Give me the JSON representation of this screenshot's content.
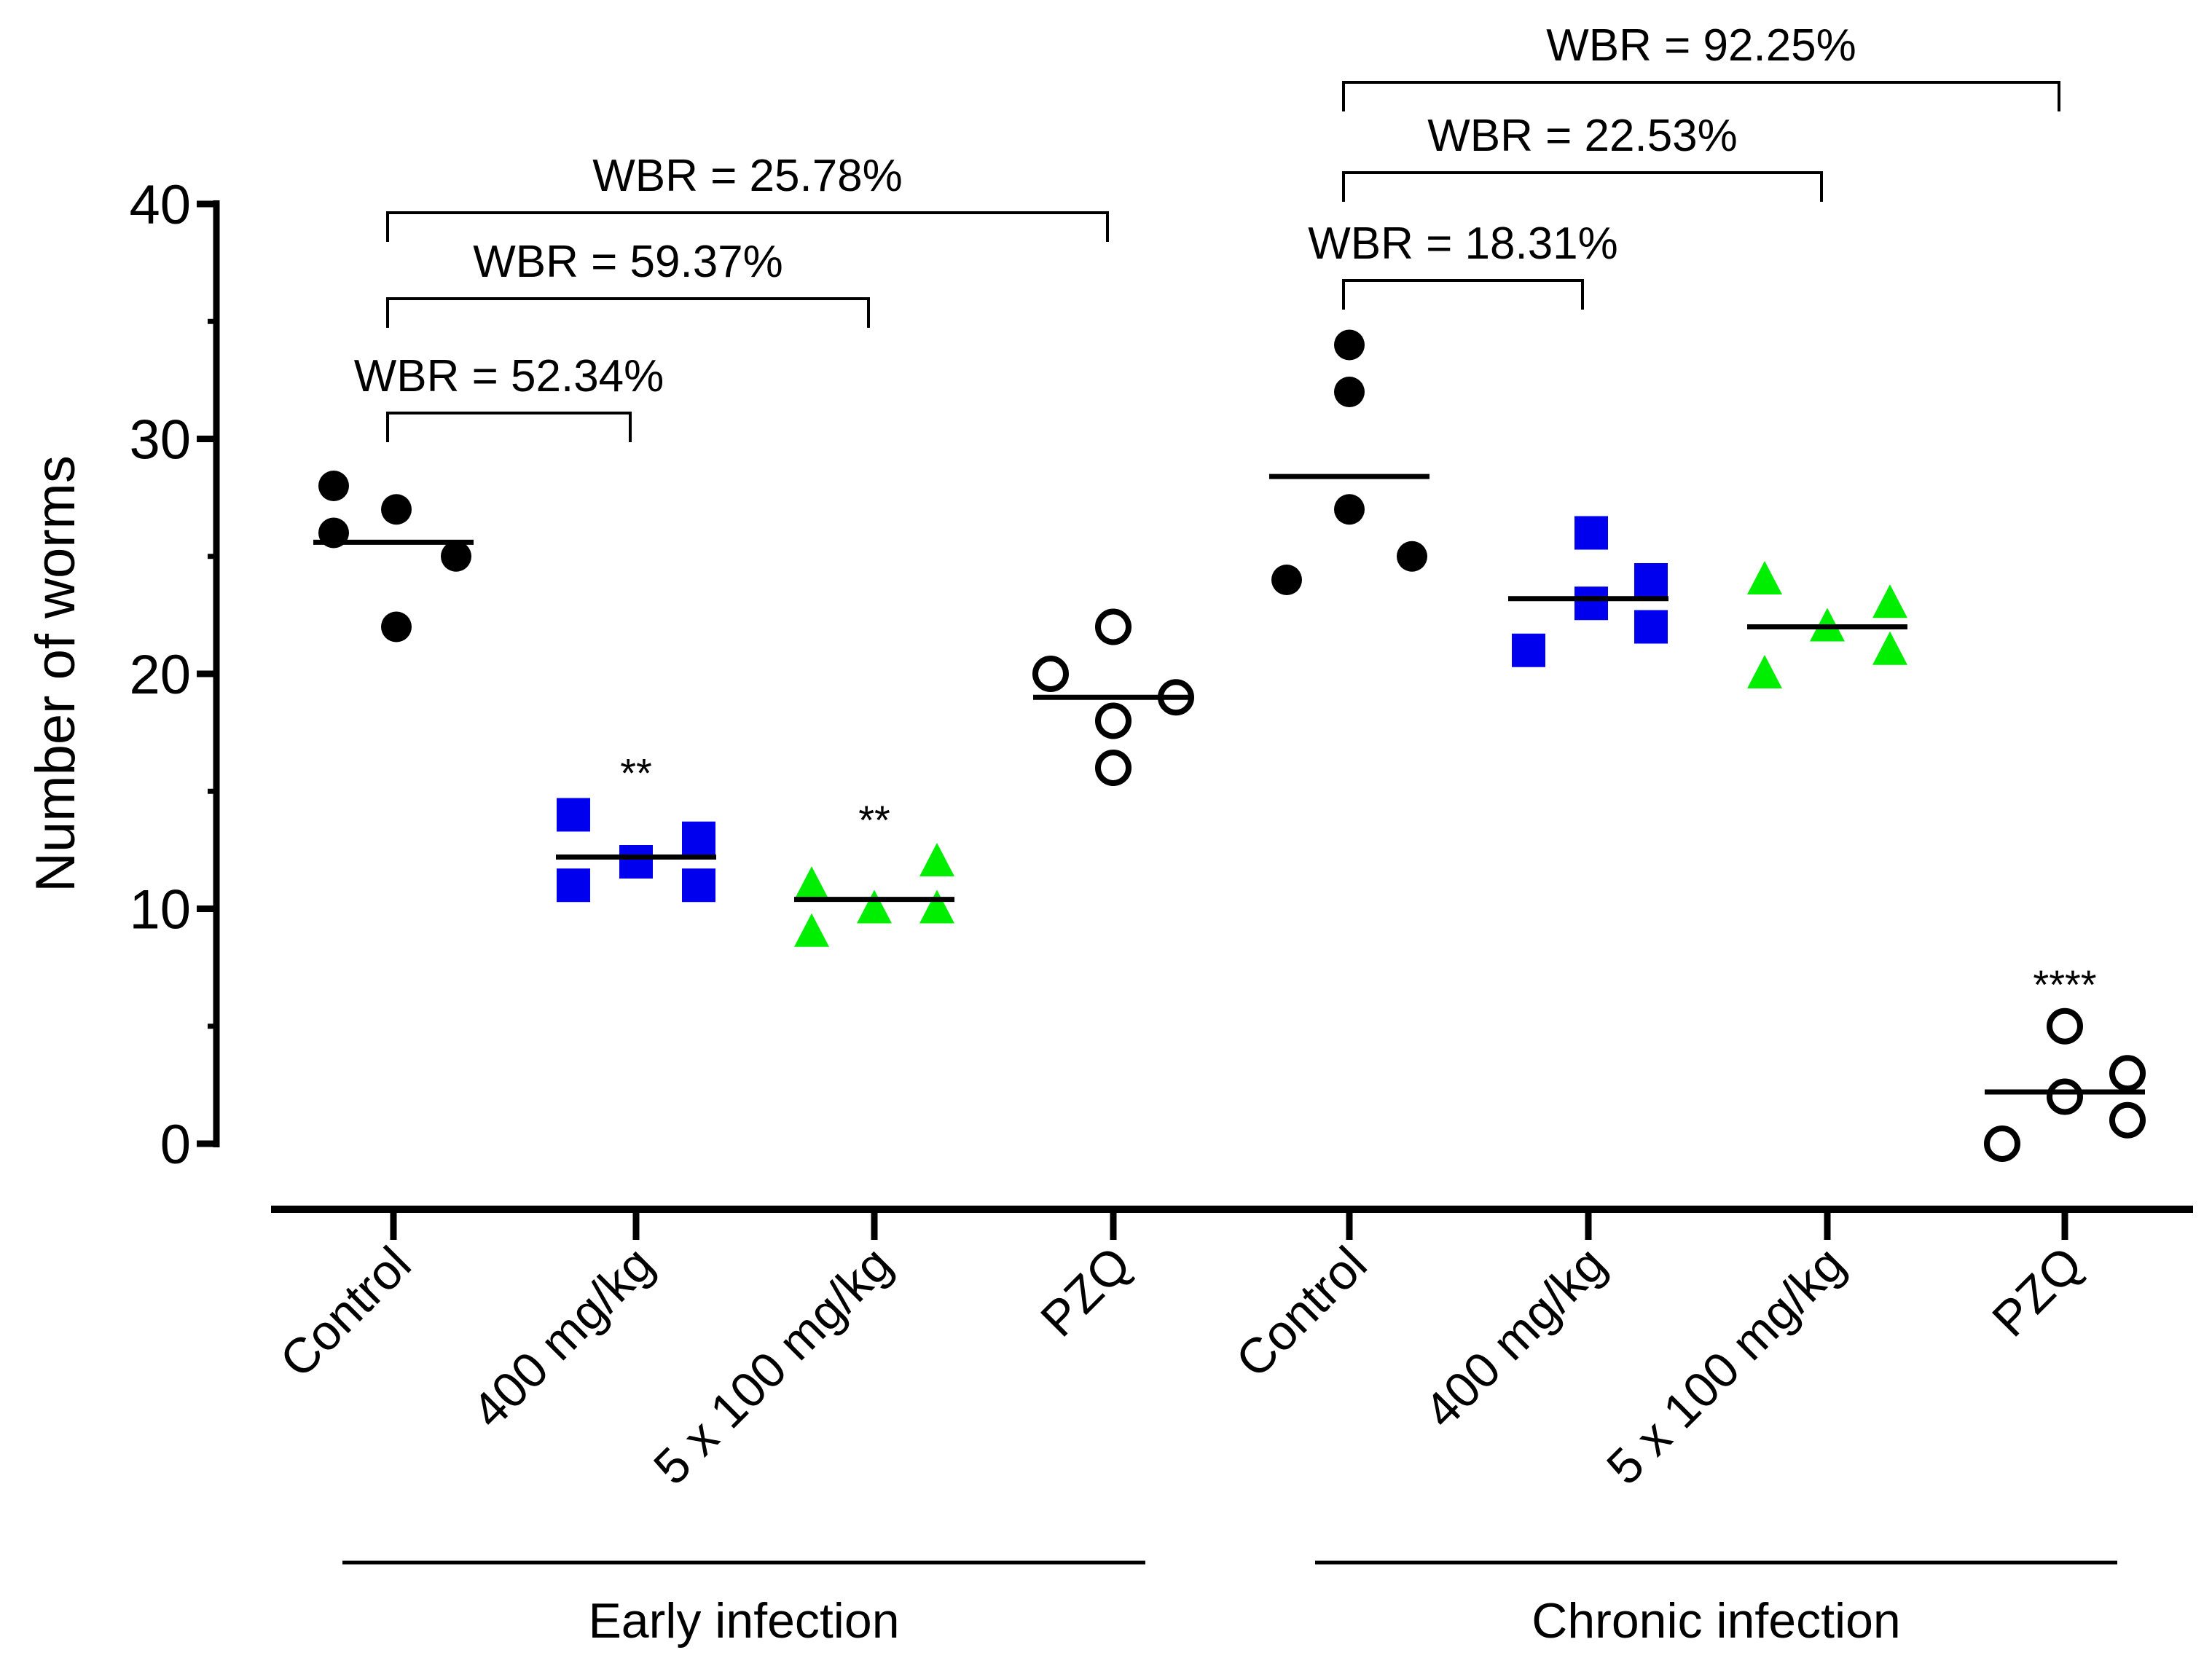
{
  "chart_data": {
    "type": "scatter",
    "title": "",
    "xlabel": "",
    "ylabel": "Number of worms",
    "ylim": [
      0,
      40
    ],
    "yticks": [
      0,
      10,
      20,
      30,
      40
    ],
    "categories": [
      "Control",
      "400 mg/kg",
      "5 x 100 mg/kg",
      "PZQ",
      "Control",
      "400 mg/kg",
      "5 x 100 mg/kg",
      "PZQ"
    ],
    "groups": [
      {
        "label": "Early infection",
        "categories": [
          0,
          1,
          2,
          3
        ]
      },
      {
        "label": "Chronic infection",
        "categories": [
          4,
          5,
          6,
          7
        ]
      }
    ],
    "series": [
      {
        "name": "Control",
        "group": "Early infection",
        "category": 0,
        "marker": "filled-circle",
        "color": "#000000",
        "values": [
          28,
          26,
          27,
          25,
          22
        ],
        "mean": 25.6
      },
      {
        "name": "400 mg/kg",
        "group": "Early infection",
        "category": 1,
        "marker": "square",
        "color": "#0000ee",
        "values": [
          14,
          11,
          12,
          13,
          11
        ],
        "mean": 12.2,
        "significance": "**"
      },
      {
        "name": "5 x 100 mg/kg",
        "group": "Early infection",
        "category": 2,
        "marker": "triangle",
        "color": "#00ee00",
        "values": [
          11,
          9,
          10,
          12,
          10
        ],
        "mean": 10.4,
        "significance": "**"
      },
      {
        "name": "PZQ",
        "group": "Early infection",
        "category": 3,
        "marker": "open-circle",
        "color": "#000000",
        "values": [
          20,
          22,
          18,
          16,
          19
        ],
        "mean": 19
      },
      {
        "name": "Control",
        "group": "Chronic infection",
        "category": 4,
        "marker": "filled-circle",
        "color": "#000000",
        "values": [
          24,
          34,
          32,
          27,
          25
        ],
        "mean": 28.4
      },
      {
        "name": "400 mg/kg",
        "group": "Chronic infection",
        "category": 5,
        "marker": "square",
        "color": "#0000ee",
        "values": [
          21,
          26,
          23,
          24,
          22
        ],
        "mean": 23.2
      },
      {
        "name": "5 x 100 mg/kg",
        "group": "Chronic infection",
        "category": 6,
        "marker": "triangle",
        "color": "#00ee00",
        "values": [
          24,
          20,
          22,
          23,
          21
        ],
        "mean": 22
      },
      {
        "name": "PZQ",
        "group": "Chronic infection",
        "category": 7,
        "marker": "open-circle",
        "color": "#000000",
        "values": [
          0,
          5,
          2,
          3,
          1
        ],
        "mean": 2.2,
        "significance": "****"
      }
    ],
    "annotations": [
      {
        "text": "WBR = 52.34%",
        "from": 0,
        "to": 1,
        "level": 1
      },
      {
        "text": "WBR = 59.37%",
        "from": 0,
        "to": 2,
        "level": 2
      },
      {
        "text": "WBR = 25.78%",
        "from": 0,
        "to": 3,
        "level": 3
      },
      {
        "text": "WBR = 18.31%",
        "from": 4,
        "to": 5,
        "level": 1
      },
      {
        "text": "WBR = 22.53%",
        "from": 4,
        "to": 6,
        "level": 2
      },
      {
        "text": "WBR = 92.25%",
        "from": 4,
        "to": 7,
        "level": 3
      }
    ]
  }
}
